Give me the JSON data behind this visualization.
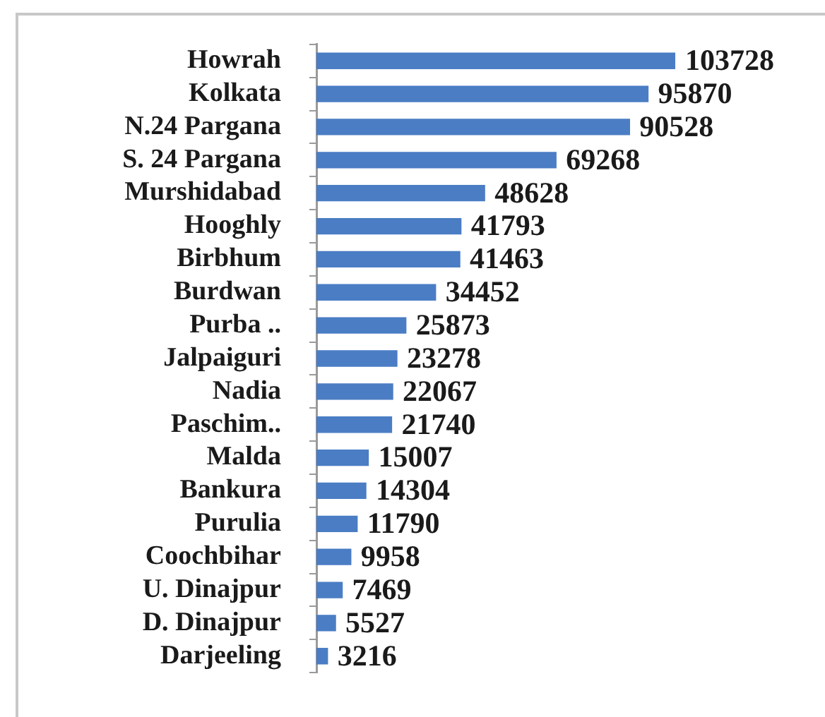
{
  "chart_data": {
    "type": "bar",
    "orientation": "horizontal",
    "categories": [
      "Howrah",
      "Kolkata",
      "N.24 Pargana",
      "S. 24 Pargana",
      "Murshidabad",
      "Hooghly",
      "Birbhum",
      "Burdwan",
      "Purba ..",
      "Jalpaiguri",
      "Nadia",
      "Paschim..",
      "Malda",
      "Bankura",
      "Purulia",
      "Coochbihar",
      "U. Dinajpur",
      "D. Dinajpur",
      "Darjeeling"
    ],
    "values": [
      103728,
      95870,
      90528,
      69268,
      48628,
      41793,
      41463,
      34452,
      25873,
      23278,
      22067,
      21740,
      15007,
      14304,
      11790,
      9958,
      7469,
      5527,
      3216
    ],
    "color": "#4a7dc4",
    "data_labels": true,
    "grid": false,
    "legend": false,
    "tick_labels": "y"
  }
}
